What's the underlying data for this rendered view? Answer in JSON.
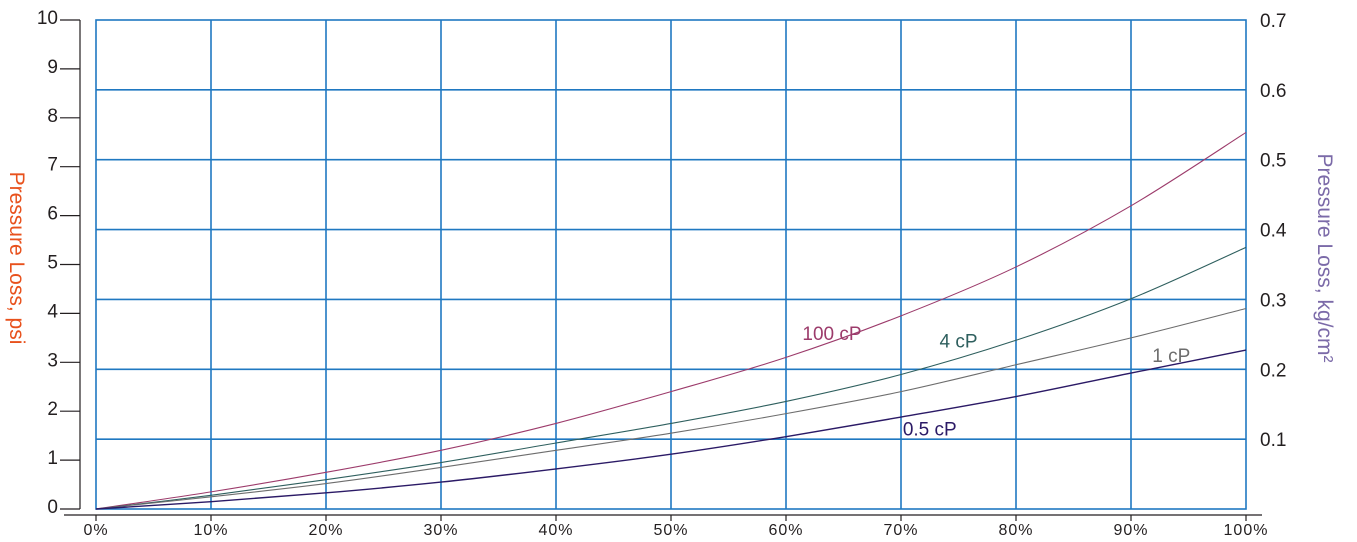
{
  "colors": {
    "grid": "#1f78c1",
    "left_axis_title": "#e8511c",
    "right_axis_title": "#7b6aa8",
    "axis_line": "#231f20"
  },
  "chart_data": {
    "type": "line",
    "title": "",
    "xlabel": "",
    "ylabel": "Pressure Loss, psi",
    "ylabel_right": "Pressure Loss, kg/cm²",
    "xlim": [
      0,
      100
    ],
    "ylim": [
      0,
      10
    ],
    "ylim_right": [
      0,
      0.7
    ],
    "x_ticks": [
      0,
      10,
      20,
      30,
      40,
      50,
      60,
      70,
      80,
      90,
      100
    ],
    "x_tick_labels": [
      "0%",
      "10%",
      "20%",
      "30%",
      "40%",
      "50%",
      "60%",
      "70%",
      "80%",
      "90%",
      "100%"
    ],
    "y_ticks": [
      0,
      1,
      2,
      3,
      4,
      5,
      6,
      7,
      8,
      9,
      10
    ],
    "y_tick_labels": [
      "0",
      "1",
      "2",
      "3",
      "4",
      "5",
      "6",
      "7",
      "8",
      "9",
      "10"
    ],
    "y_right_ticks": [
      0.1,
      0.2,
      0.3,
      0.4,
      0.5,
      0.6,
      0.7
    ],
    "y_right_tick_labels": [
      "0.1",
      "0.2",
      "0.3",
      "0.4",
      "0.5",
      "0.6",
      "0.7"
    ],
    "grid": true,
    "legend": "none",
    "series": [
      {
        "name": "100 cP",
        "color": "#9c3b6b",
        "x": [
          0,
          10,
          20,
          30,
          40,
          50,
          60,
          70,
          80,
          90,
          100
        ],
        "y": [
          0,
          0.35,
          0.75,
          1.2,
          1.75,
          2.4,
          3.1,
          3.95,
          4.95,
          6.2,
          7.7
        ],
        "label_at": [
          64,
          3.6
        ]
      },
      {
        "name": "4 cP",
        "color": "#2e5f5e",
        "x": [
          0,
          10,
          20,
          30,
          40,
          50,
          60,
          70,
          80,
          90,
          100
        ],
        "y": [
          0,
          0.28,
          0.6,
          0.95,
          1.35,
          1.75,
          2.2,
          2.75,
          3.45,
          4.3,
          5.35
        ],
        "label_at": [
          75,
          3.45
        ]
      },
      {
        "name": "1 cP",
        "color": "#6d6d6d",
        "x": [
          0,
          10,
          20,
          30,
          40,
          50,
          60,
          70,
          80,
          90,
          100
        ],
        "y": [
          0,
          0.25,
          0.52,
          0.85,
          1.2,
          1.55,
          1.95,
          2.4,
          2.95,
          3.5,
          4.1
        ],
        "label_at": [
          93.5,
          3.15
        ]
      },
      {
        "name": "0.5 cP",
        "color": "#2b1a66",
        "x": [
          0,
          10,
          20,
          30,
          40,
          50,
          60,
          70,
          80,
          90,
          100
        ],
        "y": [
          0,
          0.15,
          0.33,
          0.55,
          0.82,
          1.12,
          1.48,
          1.88,
          2.3,
          2.78,
          3.25
        ],
        "label_at": [
          72.5,
          1.65
        ]
      }
    ]
  }
}
